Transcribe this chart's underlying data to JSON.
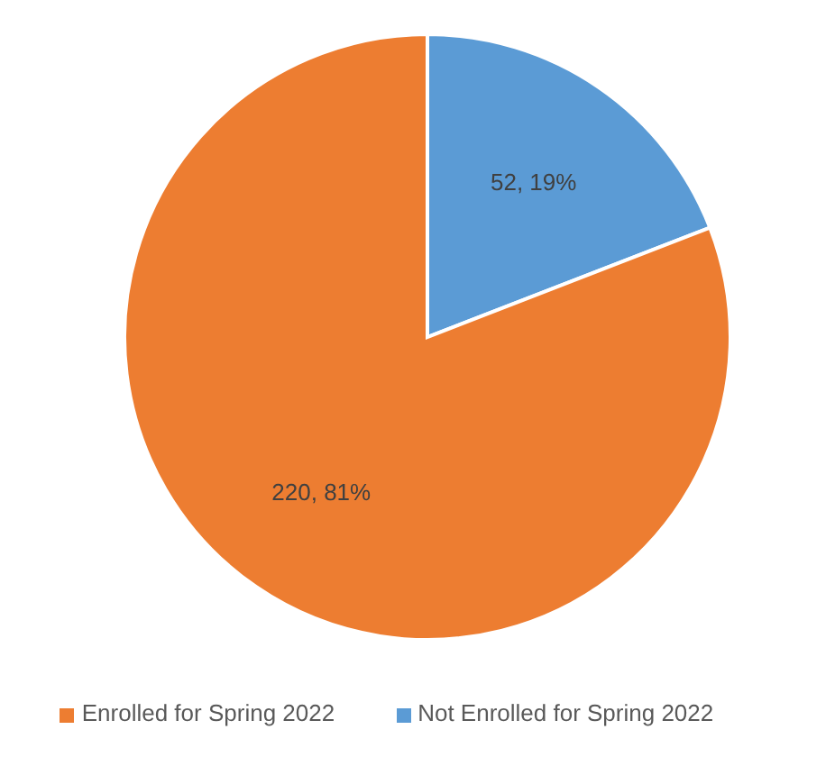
{
  "chart_data": {
    "type": "pie",
    "categories": [
      "Not Enrolled for Spring 2022",
      "Enrolled for Spring 2022"
    ],
    "values": [
      52,
      220
    ],
    "colors": [
      "#5b9bd5",
      "#ed7d31"
    ],
    "value_labels": [
      "52, 19%",
      "220, 81%"
    ],
    "legend": "bottom"
  }
}
